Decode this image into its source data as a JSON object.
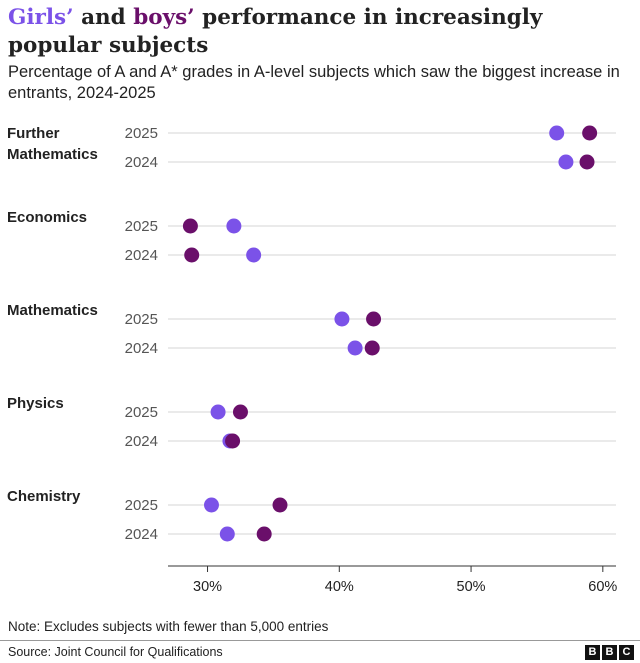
{
  "title": {
    "girls": "Girls’",
    "and": " and ",
    "boys": "boys’",
    "rest": " performance in increasingly popular subjects"
  },
  "subtitle": "Percentage of A and A* grades in A-level subjects which saw the biggest increase in entrants, 2024-2025",
  "note": "Note: Excludes subjects with fewer than 5,000 entries",
  "source": "Source: Joint Council for Qualifications",
  "logo": [
    "B",
    "B",
    "C"
  ],
  "colors": {
    "girls": "#7b52e8",
    "boys": "#6a0f6a",
    "grid": "#d6d6d6",
    "axis": "#333333"
  },
  "chart_data": {
    "type": "scatter",
    "xlim": [
      27,
      61
    ],
    "x_ticks": [
      30,
      40,
      50,
      60
    ],
    "x_tick_labels": [
      "30%",
      "40%",
      "50%",
      "60%"
    ],
    "grid": true,
    "series_colors": {
      "girls": "#7b52e8",
      "boys": "#6a0f6a"
    },
    "categories": [
      {
        "name": "Further Mathematics",
        "label_lines": [
          "Further",
          "Mathematics"
        ],
        "rows": [
          {
            "year": "2025",
            "girls": 56.5,
            "boys": 59.0
          },
          {
            "year": "2024",
            "girls": 57.2,
            "boys": 58.8
          }
        ]
      },
      {
        "name": "Economics",
        "label_lines": [
          "Economics"
        ],
        "rows": [
          {
            "year": "2025",
            "girls": 32.0,
            "boys": 28.7
          },
          {
            "year": "2024",
            "girls": 33.5,
            "boys": 28.8
          }
        ]
      },
      {
        "name": "Mathematics",
        "label_lines": [
          "Mathematics"
        ],
        "rows": [
          {
            "year": "2025",
            "girls": 40.2,
            "boys": 42.6
          },
          {
            "year": "2024",
            "girls": 41.2,
            "boys": 42.5
          }
        ]
      },
      {
        "name": "Physics",
        "label_lines": [
          "Physics"
        ],
        "rows": [
          {
            "year": "2025",
            "girls": 30.8,
            "boys": 32.5
          },
          {
            "year": "2024",
            "girls": 31.7,
            "boys": 31.9
          }
        ]
      },
      {
        "name": "Chemistry",
        "label_lines": [
          "Chemistry"
        ],
        "rows": [
          {
            "year": "2025",
            "girls": 30.3,
            "boys": 35.5
          },
          {
            "year": "2024",
            "girls": 31.5,
            "boys": 34.3
          }
        ]
      }
    ]
  }
}
